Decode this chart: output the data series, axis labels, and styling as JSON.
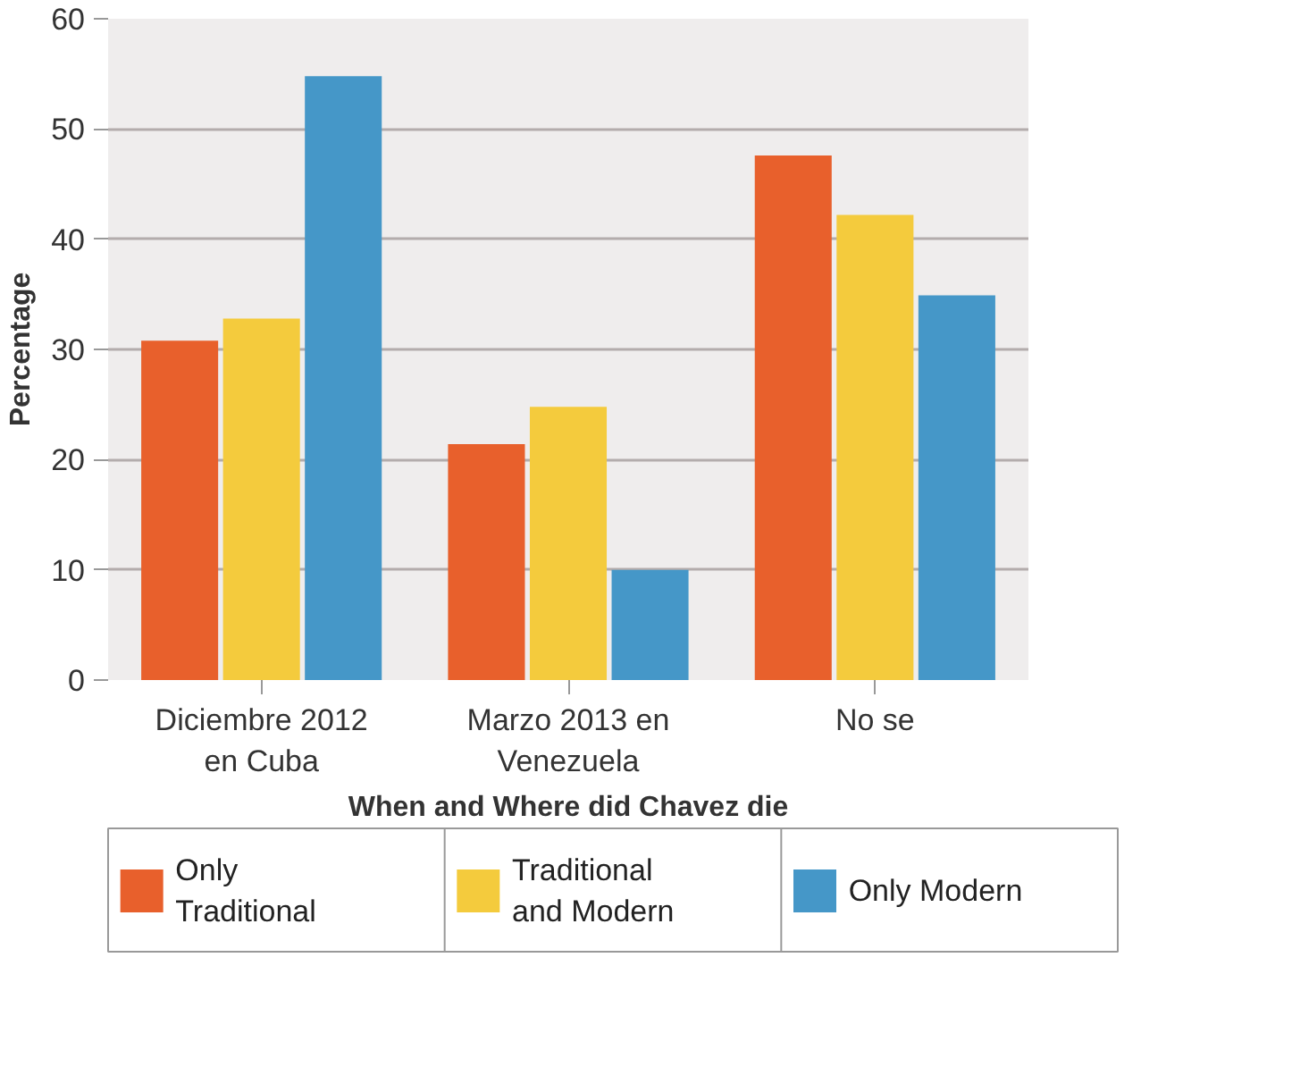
{
  "chart_data": {
    "type": "bar",
    "xlabel": "When and Where did Chavez die",
    "ylabel": "Percentage",
    "categories": [
      "Diciembre 2012 en Cuba",
      "Marzo 2013 en Venezuela",
      "No se"
    ],
    "series": [
      {
        "name": "Only Traditional",
        "color": "#e8602c",
        "values": [
          30.8,
          21.4,
          47.6
        ]
      },
      {
        "name": "Traditional and Modern",
        "color": "#f4cb3d",
        "values": [
          32.8,
          24.8,
          42.2
        ]
      },
      {
        "name": "Only Modern",
        "color": "#4597c8",
        "values": [
          54.8,
          10,
          34.9
        ]
      }
    ],
    "ylim": [
      0,
      60
    ],
    "yticks": [
      0,
      10,
      20,
      30,
      40,
      50,
      60
    ],
    "grid": "y",
    "legend": "bottom"
  }
}
